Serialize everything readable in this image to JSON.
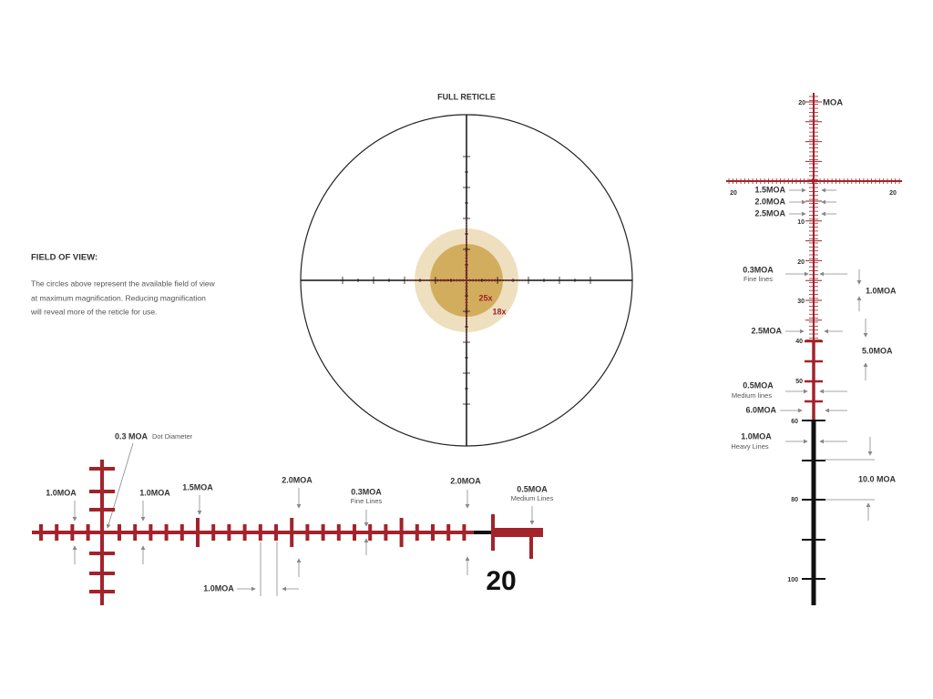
{
  "full_reticle": {
    "title": "FULL RETICLE",
    "magnifications": [
      "25x",
      "18x"
    ]
  },
  "field_of_view": {
    "title": "FIELD OF VIEW:",
    "lines": [
      "The circles above represent the available field of view",
      "at maximum magnification. Reducing magnification",
      "will reveal more of the reticle for use."
    ]
  },
  "horizontal_detail": {
    "labels": [
      {
        "text": "0.3 MOA",
        "note": "Dot Diameter"
      },
      {
        "text": "1.0MOA"
      },
      {
        "text": "1.0MOA"
      },
      {
        "text": "1.5MOA"
      },
      {
        "text": "2.0MOA"
      },
      {
        "text": "0.3MOA",
        "note": "Fine Lines"
      },
      {
        "text": "2.0MOA"
      },
      {
        "text": "0.5MOA",
        "note": "Medium Lines"
      },
      {
        "text": "1.0MOA"
      }
    ],
    "number": "20"
  },
  "vertical_detail": {
    "unit": "MOA",
    "scale": [
      "20",
      "20",
      "20",
      "10",
      "20",
      "30",
      "40",
      "50",
      "60",
      "80",
      "100"
    ],
    "labels": [
      {
        "text": "1.5MOA"
      },
      {
        "text": "2.0MOA"
      },
      {
        "text": "2.5MOA"
      },
      {
        "text": "0.3MOA",
        "note": "Fine lines"
      },
      {
        "text": "1.0MOA"
      },
      {
        "text": "2.5MOA"
      },
      {
        "text": "5.0MOA"
      },
      {
        "text": "0.5MOA",
        "note": "Medium lines"
      },
      {
        "text": "6.0MOA"
      },
      {
        "text": "1.0MOA",
        "note": "Heavy Lines"
      },
      {
        "text": "10.0 MOA"
      }
    ]
  }
}
